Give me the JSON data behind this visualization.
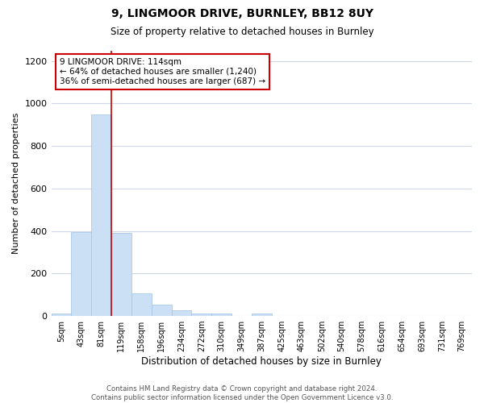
{
  "title1": "9, LINGMOOR DRIVE, BURNLEY, BB12 8UY",
  "title2": "Size of property relative to detached houses in Burnley",
  "xlabel": "Distribution of detached houses by size in Burnley",
  "ylabel": "Number of detached properties",
  "bar_labels": [
    "5sqm",
    "43sqm",
    "81sqm",
    "119sqm",
    "158sqm",
    "196sqm",
    "234sqm",
    "272sqm",
    "310sqm",
    "349sqm",
    "387sqm",
    "425sqm",
    "463sqm",
    "502sqm",
    "540sqm",
    "578sqm",
    "616sqm",
    "654sqm",
    "693sqm",
    "731sqm",
    "769sqm"
  ],
  "bar_values": [
    13,
    393,
    950,
    390,
    107,
    52,
    25,
    13,
    10,
    0,
    11,
    0,
    0,
    0,
    0,
    0,
    0,
    0,
    0,
    0,
    0
  ],
  "bar_color": "#cce0f5",
  "bar_edgecolor": "#a8c8e8",
  "grid_color": "#d0d8e8",
  "background_color": "#ffffff",
  "vline_color": "#cc0000",
  "annotation_line1": "9 LINGMOOR DRIVE: 114sqm",
  "annotation_line2": "← 64% of detached houses are smaller (1,240)",
  "annotation_line3": "36% of semi-detached houses are larger (687) →",
  "annotation_box_color": "#cc0000",
  "annotation_bg": "#ffffff",
  "ylim": [
    0,
    1250
  ],
  "yticks": [
    0,
    200,
    400,
    600,
    800,
    1000,
    1200
  ],
  "footer1": "Contains HM Land Registry data © Crown copyright and database right 2024.",
  "footer2": "Contains public sector information licensed under the Open Government Licence v3.0."
}
